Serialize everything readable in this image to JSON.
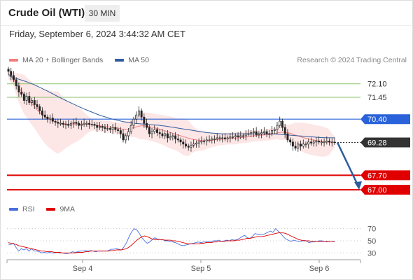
{
  "header": {
    "title": "Crude Oil (WTI)",
    "timeframe": "30 MIN",
    "datetime": "Friday, September 6, 2024 3:44:32 AM CET"
  },
  "legend": {
    "ma20_label": "MA 20 + Bollinger Bands",
    "ma50_label": "MA 50",
    "credit": "Research © 2024 Trading Central",
    "rsi_label": "RSI",
    "rsi_ma_label": "9MA"
  },
  "colors": {
    "ma20": "#f08080",
    "ma50": "#2e5c9e",
    "bands_fill": "#fde3e3",
    "support": "#e00000",
    "pivot": "#2962d9",
    "resistance": "#8ac26a",
    "current": "#333333",
    "rsi": "#4a6fdc",
    "rsi_ma": "#e00000"
  },
  "chart_data": [
    {
      "type": "candlestick",
      "title": "Crude Oil (WTI)",
      "timeframe": "30 MIN",
      "x_ticks": [
        "Sep 4",
        "Sep 5",
        "Sep 6"
      ],
      "ylim": [
        66.6,
        72.9
      ],
      "levels": [
        {
          "value": 72.1,
          "label": "72.10",
          "kind": "resistance"
        },
        {
          "value": 71.45,
          "label": "71.45",
          "kind": "resistance"
        },
        {
          "value": 70.4,
          "label": "70.40",
          "kind": "pivot"
        },
        {
          "value": 69.28,
          "label": "69.28",
          "kind": "current"
        },
        {
          "value": 67.7,
          "label": "67.70",
          "kind": "support"
        },
        {
          "value": 67.0,
          "label": "67.00",
          "kind": "support"
        }
      ],
      "closes": [
        72.7,
        72.5,
        72.3,
        72.0,
        71.7,
        71.6,
        71.3,
        71.5,
        71.2,
        71.3,
        71.1,
        71.0,
        70.8,
        70.6,
        70.5,
        70.4,
        70.45,
        70.3,
        70.25,
        70.2,
        70.2,
        70.15,
        70.15,
        70.1,
        70.2,
        70.25,
        70.2,
        70.1,
        70.15,
        70.2,
        70.2,
        70.15,
        70.15,
        70.1,
        70.0,
        70.05,
        70.0,
        69.95,
        69.95,
        69.9,
        70.0,
        69.9,
        69.85,
        69.7,
        69.4,
        69.6,
        69.8,
        70.1,
        70.4,
        70.6,
        70.8,
        70.5,
        70.2,
        70.0,
        69.7,
        69.8,
        69.9,
        69.75,
        69.7,
        69.6,
        69.7,
        69.5,
        69.55,
        69.6,
        69.45,
        69.4,
        69.3,
        69.2,
        69.1,
        69.05,
        69.15,
        69.2,
        69.25,
        69.3,
        69.35,
        69.35,
        69.4,
        69.4,
        69.45,
        69.45,
        69.5,
        69.5,
        69.5,
        69.45,
        69.5,
        69.55,
        69.55,
        69.6,
        69.55,
        69.6,
        69.6,
        69.7,
        69.7,
        69.75,
        69.8,
        69.65,
        69.7,
        69.75,
        69.8,
        69.7,
        69.7,
        69.85,
        69.9,
        70.1,
        70.3,
        70.0,
        69.7,
        69.4,
        69.3,
        69.1,
        69.0,
        69.2,
        69.1,
        69.2,
        69.2,
        69.3,
        69.25,
        69.3,
        69.35,
        69.3,
        69.3,
        69.3,
        69.35,
        69.3,
        69.3,
        69.28
      ],
      "series": [
        {
          "name": "MA 20 + Bollinger Bands",
          "values": [
            72.6,
            72.45,
            72.3,
            72.1,
            71.9,
            71.75,
            71.6,
            71.45,
            71.3,
            71.15,
            71.0,
            70.85,
            70.72,
            70.62,
            70.52,
            70.45,
            70.38,
            70.32,
            70.27,
            70.23,
            70.2,
            70.18,
            70.17,
            70.16,
            70.16,
            70.16,
            70.16,
            70.16,
            70.16,
            70.16,
            70.15,
            70.14,
            70.13,
            70.12,
            70.1,
            70.08,
            70.06,
            70.04,
            70.03,
            70.02,
            70.0,
            69.98,
            69.96,
            69.94,
            69.9,
            69.9,
            69.92,
            69.95,
            69.99,
            70.03,
            70.06,
            70.08,
            70.08,
            70.06,
            70.04,
            70.01,
            69.98,
            69.95,
            69.92,
            69.88,
            69.84,
            69.8,
            69.76,
            69.72,
            69.68,
            69.64,
            69.6,
            69.56,
            69.52,
            69.48,
            69.45,
            69.42,
            69.4,
            69.38,
            69.37,
            69.37,
            69.37,
            69.38,
            69.39,
            69.4,
            69.42,
            69.43,
            69.44,
            69.45,
            69.46,
            69.47,
            69.48,
            69.49,
            69.5,
            69.51,
            69.52,
            69.54,
            69.56,
            69.58,
            69.6,
            69.61,
            69.62,
            69.63,
            69.64,
            69.65,
            69.66,
            69.68,
            69.7,
            69.73,
            69.76,
            69.77,
            69.77,
            69.75,
            69.72,
            69.68,
            69.63,
            69.59,
            69.55,
            69.51,
            69.48,
            69.45,
            69.42,
            69.39,
            69.37,
            69.35,
            69.33,
            69.31,
            69.3,
            69.29,
            69.29,
            69.29
          ]
        },
        {
          "name": "MA 50",
          "values": [
            72.5,
            72.45,
            72.4,
            72.36,
            72.32,
            72.28,
            72.24,
            72.2,
            72.15,
            72.1,
            72.05,
            71.99,
            71.93,
            71.87,
            71.81,
            71.75,
            71.68,
            71.62,
            71.55,
            71.49,
            71.42,
            71.36,
            71.3,
            71.24,
            71.18,
            71.12,
            71.06,
            71.0,
            70.95,
            70.89,
            70.84,
            70.79,
            70.74,
            70.69,
            70.64,
            70.59,
            70.55,
            70.51,
            70.47,
            70.43,
            70.4,
            70.37,
            70.34,
            70.31,
            70.28,
            70.26,
            70.24,
            70.22,
            70.2,
            70.19,
            70.18,
            70.17,
            70.16,
            70.15,
            70.14,
            70.13,
            70.12,
            70.11,
            70.1,
            70.08,
            70.07,
            70.05,
            70.03,
            70.01,
            69.99,
            69.97,
            69.95,
            69.93,
            69.91,
            69.89,
            69.87,
            69.85,
            69.83,
            69.81,
            69.79,
            69.77,
            69.75,
            69.74,
            69.73,
            69.72,
            69.71,
            69.7,
            69.69,
            69.69,
            69.69,
            69.69,
            69.69,
            69.69,
            69.69,
            69.69,
            69.69,
            69.69,
            69.69,
            69.69,
            69.69,
            69.69,
            69.69,
            69.69,
            69.69,
            69.69,
            69.69,
            69.69,
            69.69,
            69.68,
            69.67,
            69.66,
            69.65,
            69.64,
            69.63,
            69.62,
            69.61,
            69.6,
            69.59,
            69.58,
            69.57,
            69.56,
            69.55,
            69.54,
            69.53,
            69.52,
            69.51,
            69.51,
            69.5,
            69.5,
            69.5,
            69.5
          ]
        }
      ],
      "forecast": {
        "from": 69.28,
        "to": 67.1
      }
    },
    {
      "type": "line",
      "title": "RSI",
      "ylim": [
        20,
        80
      ],
      "y_ticks": [
        70,
        50,
        30
      ],
      "series": [
        {
          "name": "RSI",
          "values": [
            44,
            44,
            46,
            39,
            33,
            37,
            35,
            37,
            33,
            37,
            33,
            33,
            32,
            30,
            31,
            30,
            31,
            30,
            30,
            31,
            30,
            30,
            29,
            29,
            30,
            32,
            31,
            32,
            33,
            33,
            34,
            33,
            34,
            33,
            32,
            33,
            33,
            33,
            33,
            34,
            36,
            36,
            37,
            36,
            35,
            40,
            47,
            57,
            65,
            70,
            68,
            62,
            55,
            50,
            46,
            48,
            52,
            55,
            53,
            52,
            52,
            50,
            50,
            49,
            48,
            47,
            45,
            43,
            42,
            43,
            44,
            45,
            46,
            47,
            48,
            47,
            48,
            48,
            49,
            49,
            50,
            50,
            51,
            49,
            50,
            51,
            50,
            52,
            51,
            52,
            54,
            57,
            59,
            55,
            54,
            57,
            62,
            61,
            60,
            60,
            62,
            64,
            66,
            64,
            70,
            66,
            62,
            57,
            53,
            51,
            49,
            51,
            50,
            49,
            49,
            51,
            50,
            47,
            48,
            48,
            49,
            50,
            50,
            49,
            48,
            49,
            49,
            48
          ]
        },
        {
          "name": "9MA",
          "values": [
            47,
            46,
            45,
            44,
            42,
            41,
            40,
            39,
            38,
            37,
            36,
            35,
            34,
            33,
            33,
            32,
            32,
            32,
            31,
            31,
            31,
            30,
            30,
            30,
            30,
            30,
            30,
            31,
            31,
            31,
            32,
            32,
            33,
            33,
            33,
            33,
            33,
            33,
            33,
            33,
            34,
            34,
            35,
            35,
            35,
            36,
            37,
            40,
            43,
            47,
            51,
            54,
            57,
            58,
            57,
            55,
            53,
            52,
            52,
            52,
            52,
            51,
            51,
            51,
            50,
            50,
            49,
            48,
            47,
            46,
            45,
            45,
            45,
            45,
            45,
            46,
            46,
            47,
            47,
            47,
            48,
            48,
            49,
            49,
            49,
            50,
            50,
            50,
            50,
            51,
            51,
            52,
            53,
            54,
            54,
            55,
            56,
            57,
            57,
            57,
            58,
            59,
            60,
            61,
            62,
            63,
            63,
            63,
            62,
            60,
            58,
            56,
            54,
            52,
            51,
            50,
            50,
            50,
            49,
            49,
            49,
            49,
            49,
            49,
            49,
            49,
            49,
            49
          ]
        }
      ]
    }
  ]
}
